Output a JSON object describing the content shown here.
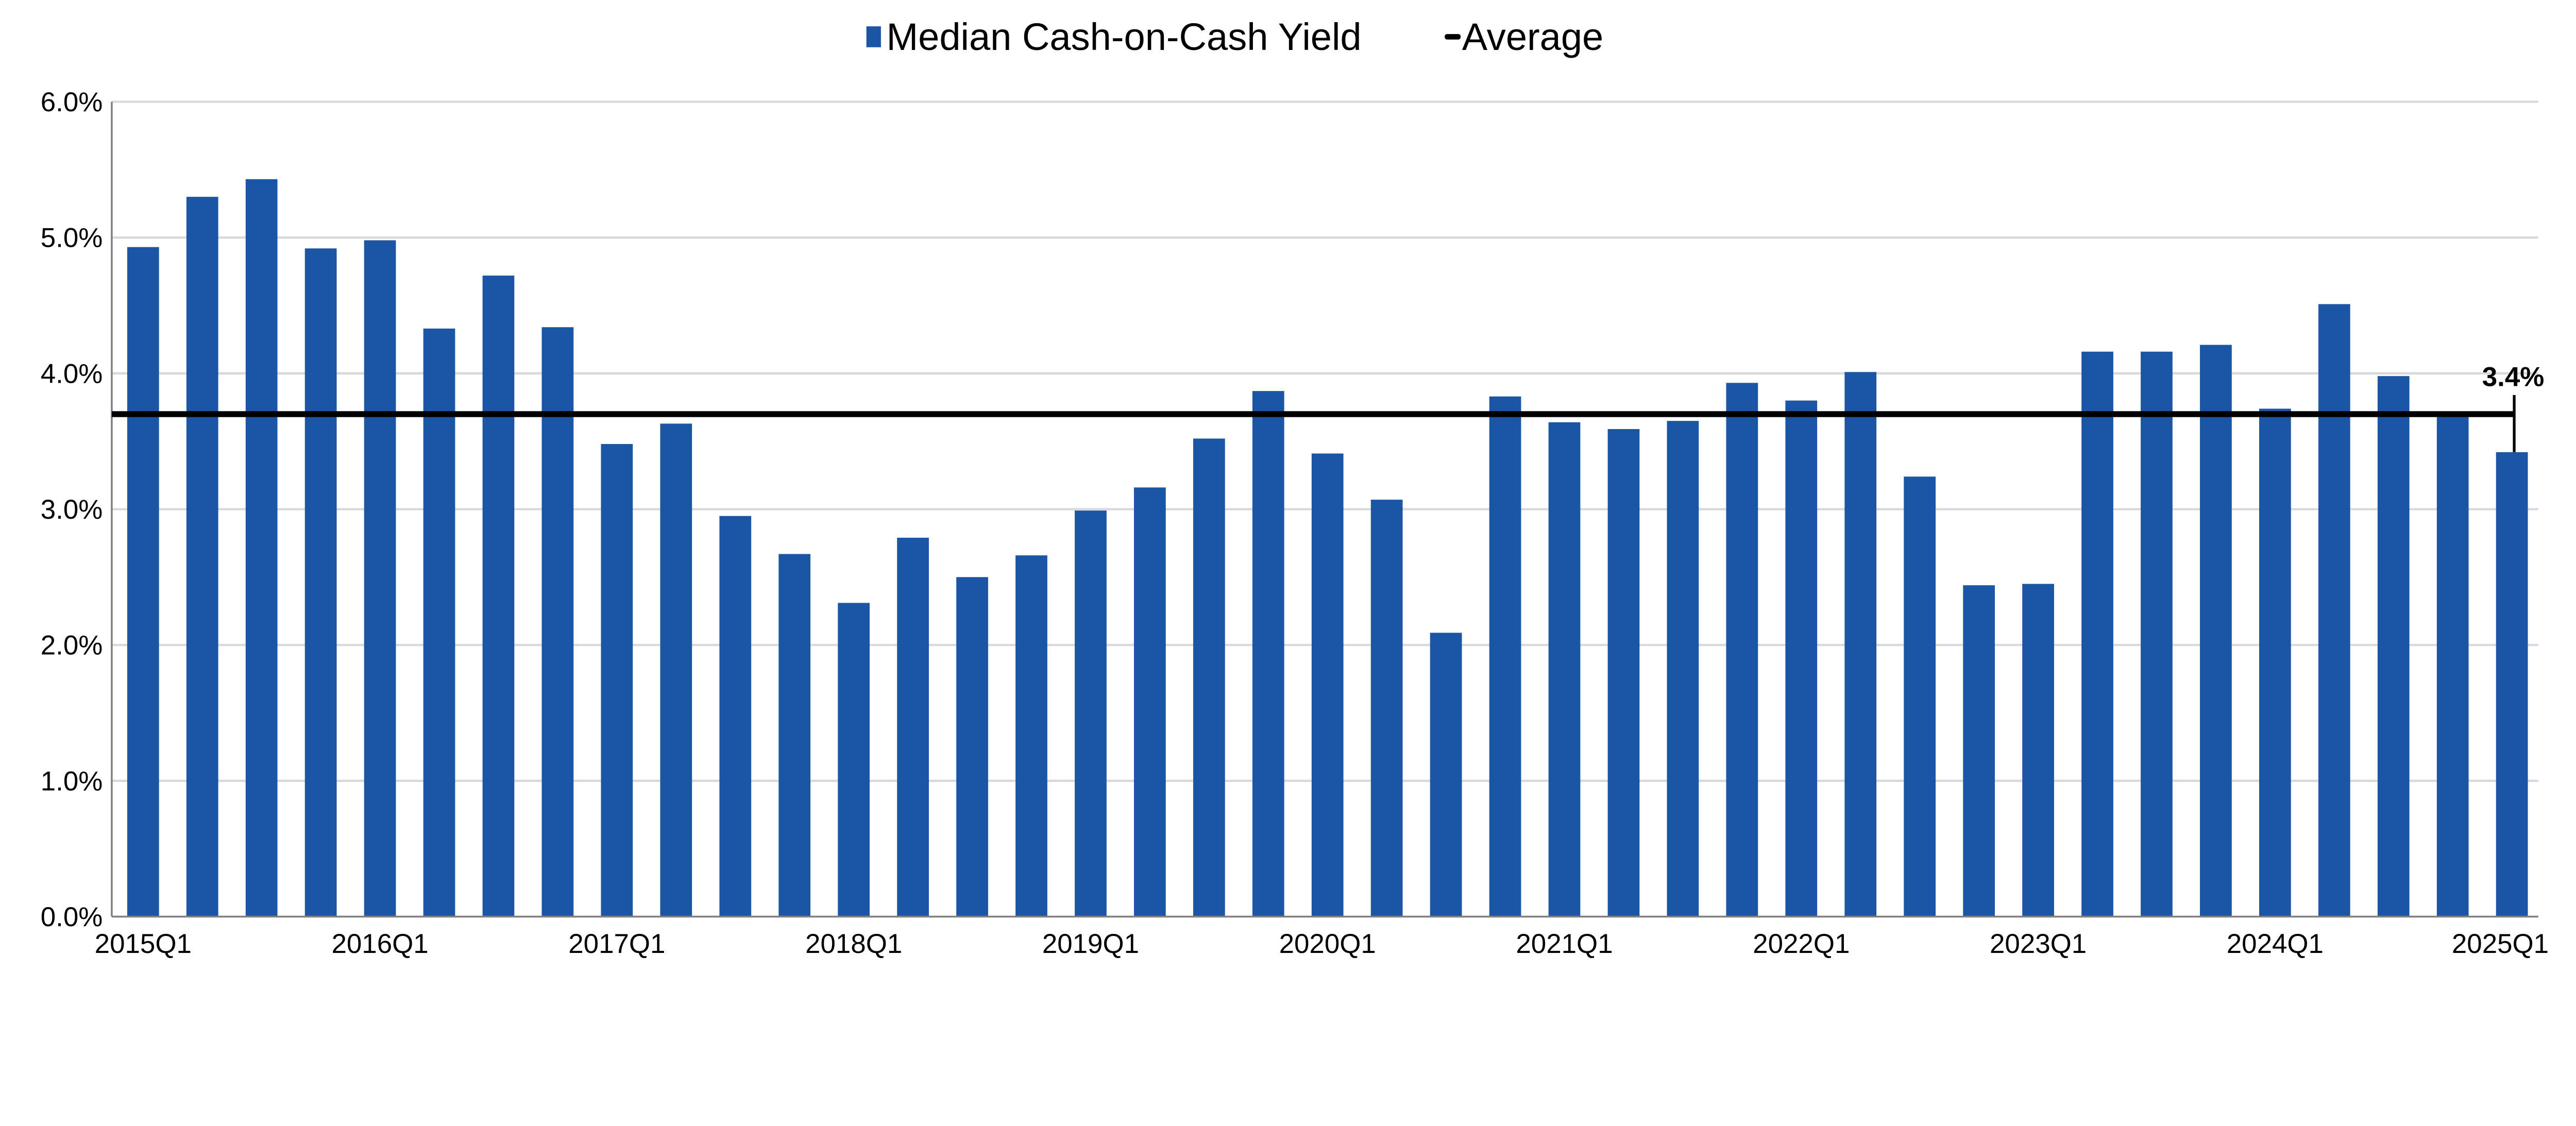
{
  "chart_data": {
    "type": "bar",
    "title": "",
    "xlabel": "",
    "ylabel": "",
    "ylim": [
      0,
      6
    ],
    "y_ticks": [
      "0.0%",
      "1.0%",
      "2.0%",
      "3.0%",
      "4.0%",
      "5.0%",
      "6.0%"
    ],
    "y_tick_values": [
      0,
      1,
      2,
      3,
      4,
      5,
      6
    ],
    "grid": "horizontal",
    "legend_position": "top",
    "x_tick_labels": [
      "2015Q1",
      "2016Q1",
      "2017Q1",
      "2018Q1",
      "2019Q1",
      "2020Q1",
      "2021Q1",
      "2022Q1",
      "2023Q1",
      "2024Q1",
      "2025Q1"
    ],
    "categories": [
      "2015Q1",
      "2015Q2",
      "2015Q3",
      "2015Q4",
      "2016Q1",
      "2016Q2",
      "2016Q3",
      "2016Q4",
      "2017Q1",
      "2017Q2",
      "2017Q3",
      "2017Q4",
      "2018Q1",
      "2018Q2",
      "2018Q3",
      "2018Q4",
      "2019Q1",
      "2019Q2",
      "2019Q3",
      "2019Q4",
      "2020Q1",
      "2020Q2",
      "2020Q3",
      "2020Q4",
      "2021Q1",
      "2021Q2",
      "2021Q3",
      "2021Q4",
      "2022Q1",
      "2022Q2",
      "2022Q3",
      "2022Q4",
      "2023Q1",
      "2023Q2",
      "2023Q3",
      "2023Q4",
      "2024Q1",
      "2024Q2",
      "2024Q3",
      "2024Q4",
      "2025Q1"
    ],
    "series": [
      {
        "name": "Median Cash-on-Cash Yield",
        "type": "bar",
        "color": "#1a56a5",
        "values": [
          4.93,
          5.3,
          5.43,
          4.92,
          4.98,
          4.33,
          4.72,
          4.34,
          3.48,
          3.63,
          2.95,
          2.67,
          2.31,
          2.79,
          2.5,
          2.66,
          2.99,
          3.16,
          3.52,
          3.87,
          3.41,
          3.07,
          2.09,
          3.83,
          3.64,
          3.59,
          3.65,
          3.93,
          3.8,
          4.01,
          3.24,
          2.44,
          2.45,
          4.16,
          4.16,
          4.21,
          3.74,
          4.51,
          3.98,
          3.69,
          3.42
        ]
      },
      {
        "name": "Average",
        "type": "line",
        "color": "#000000",
        "value": 3.7
      }
    ],
    "annotation": {
      "text": "3.4%",
      "category": "2025Q1"
    }
  }
}
